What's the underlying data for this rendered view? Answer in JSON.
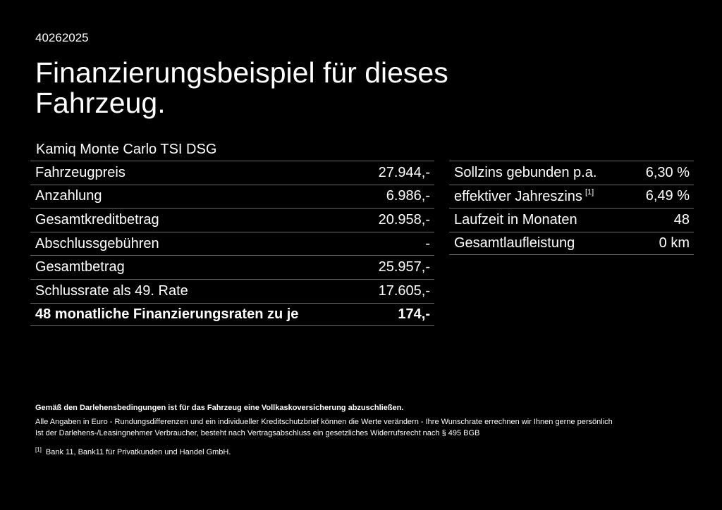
{
  "header": {
    "reference": "40262025",
    "title": "Finanzierungsbeispiel für dieses Fahrzeug.",
    "model": "Kamiq Monte Carlo TSI DSG"
  },
  "left_table": [
    {
      "label": "Fahrzeugpreis",
      "value": "27.944,-"
    },
    {
      "label": "Anzahlung",
      "value": "6.986,-"
    },
    {
      "label": "Gesamtkreditbetrag",
      "value": "20.958,-"
    },
    {
      "label": "Abschlussgebühren",
      "value": "-"
    },
    {
      "label": "Gesamtbetrag",
      "value": "25.957,-"
    },
    {
      "label": "Schlussrate als 49. Rate",
      "value": "17.605,-"
    },
    {
      "label": "48 monatliche Finanzierungsraten zu je",
      "value": "174,-"
    }
  ],
  "right_table": [
    {
      "label": "Sollzins gebunden p.a.",
      "value": "6,30 %"
    },
    {
      "label": "effektiver Jahreszins",
      "footnote": "[1]",
      "value": "6,49 %"
    },
    {
      "label": "Laufzeit in Monaten",
      "value": "48"
    },
    {
      "label": "Gesamtlaufleistung",
      "value": "0 km"
    }
  ],
  "footer": {
    "insurance_note": "Gemäß den Darlehensbedingungen ist für das Fahrzeug eine Vollkaskoversicherung abzuschließen.",
    "currency_note": "Alle Angaben in Euro - Rundungsdifferenzen und ein individueller Kreditschutzbrief können die Werte verändern - Ihre Wunschrate errechnen wir Ihnen gerne persönlich",
    "withdrawal_note": "Ist der Darlehens-/Leasingnehmer Verbraucher, besteht nach Vertragsabschluss ein gesetzliches Widerrufsrecht nach § 495 BGB",
    "footnote_marker": "[1]",
    "footnote_text": "Bank 11, Bank11 für Privatkunden und Handel GmbH."
  },
  "colors": {
    "background": "#000000",
    "text": "#ffffff",
    "divider": "#6b6b6b"
  }
}
